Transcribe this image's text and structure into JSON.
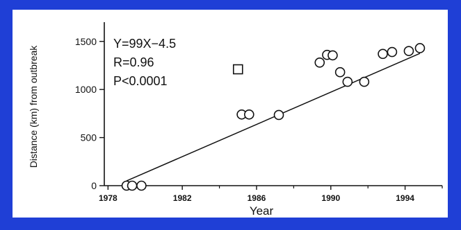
{
  "chart_data": {
    "type": "scatter",
    "xlabel": "Year",
    "ylabel": "Distance (km) from outbreak",
    "xlim": [
      1977.8,
      1996.0
    ],
    "ylim": [
      0,
      1700
    ],
    "xticks": [
      1978,
      1982,
      1986,
      1990,
      1994
    ],
    "yticks": [
      0,
      500,
      1000,
      1500
    ],
    "annotations": [
      "Y=99X−4.5",
      "R=0.96",
      "P<0.0001"
    ],
    "grid": false,
    "series": [
      {
        "marker": "circle",
        "points": [
          [
            1979.0,
            0
          ],
          [
            1979.3,
            0
          ],
          [
            1979.8,
            0
          ],
          [
            1985.2,
            740
          ],
          [
            1985.6,
            740
          ],
          [
            1987.2,
            735
          ],
          [
            1989.4,
            1280
          ],
          [
            1989.8,
            1360
          ],
          [
            1990.1,
            1355
          ],
          [
            1990.5,
            1180
          ],
          [
            1990.9,
            1080
          ],
          [
            1991.8,
            1080
          ],
          [
            1992.8,
            1370
          ],
          [
            1993.3,
            1390
          ],
          [
            1994.2,
            1400
          ],
          [
            1994.8,
            1430
          ]
        ]
      },
      {
        "marker": "square",
        "points": [
          [
            1985.0,
            1210
          ]
        ]
      }
    ],
    "fit_line": {
      "x": [
        1979.0,
        1994.8
      ],
      "y": [
        50,
        1375
      ]
    }
  }
}
